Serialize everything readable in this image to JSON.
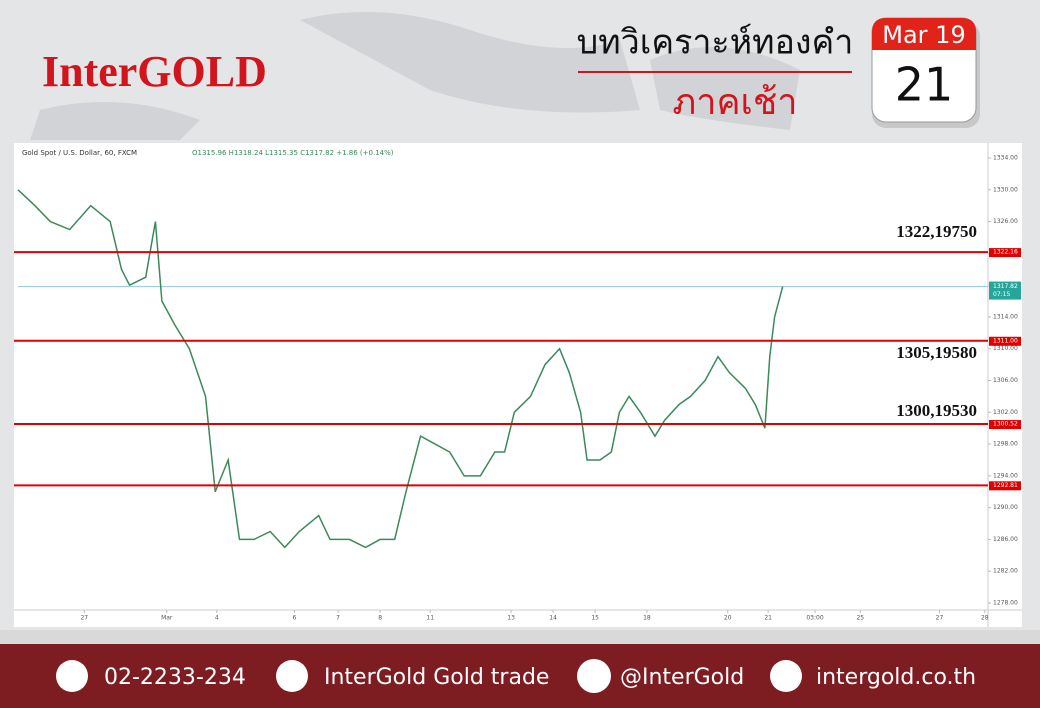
{
  "header": {
    "logo": "InterGOLD",
    "title": "บทวิเคราะห์ทองคำ",
    "subtitle": "ภาคเช้า",
    "month": "Mar 19",
    "day": "21"
  },
  "chart_data": {
    "type": "line",
    "title": "Gold Spot / U.S. Dollar, 60, FXCM",
    "ohlc": "O1315.96 H1318.24 L1315.35 C1317.82 +1.86 (+0.14%)",
    "series": [
      {
        "name": "Gold Spot",
        "color": "#3a8a5a",
        "x": [
          0,
          10.5,
          20,
          32,
          45,
          57,
          64,
          69,
          79,
          85,
          89,
          97,
          106,
          116,
          119,
          122,
          130,
          137,
          146,
          156,
          165,
          174,
          186,
          193,
          205,
          215,
          224,
          233,
          240,
          249,
          258,
          267,
          276,
          286,
          295,
          301,
          307,
          317,
          326,
          335,
          341,
          348,
          352,
          360,
          367,
          372,
          378,
          385,
          394,
          400,
          409,
          416,
          425,
          433,
          440,
          450,
          456,
          462,
          465,
          468,
          473
        ],
        "values": [
          1330,
          1328,
          1326,
          1325,
          1328,
          1326,
          1320,
          1318,
          1319,
          1326,
          1316,
          1313,
          1310,
          1304,
          1298,
          1292,
          1296,
          1286,
          1286,
          1287,
          1285,
          1287,
          1289,
          1286,
          1286,
          1285,
          1286,
          1286,
          1292,
          1299,
          1298,
          1297,
          1294,
          1294,
          1297,
          1297,
          1302,
          1304,
          1308,
          1310,
          1307,
          1302,
          1296,
          1296,
          1297,
          1302,
          1304,
          1302,
          1299,
          1301,
          1303,
          1304,
          1306,
          1309,
          1307,
          1305,
          1303,
          1300,
          1309,
          1314,
          1317.82
        ]
      }
    ],
    "levels": [
      {
        "value": 1322.16,
        "label": "1322.16"
      },
      {
        "value": 1311,
        "label": "1311.00"
      },
      {
        "value": 1300.52,
        "label": "1300.52"
      },
      {
        "value": 1292.81,
        "label": "1292.81"
      }
    ],
    "level_color": "#e00000",
    "annotations": [
      "1322,19750",
      "1305,19580",
      "1300,19530"
    ],
    "last_price": {
      "value": 1317.82,
      "countdown": "07:15",
      "color": "#8fc9d6",
      "tag_color": "#26a69a"
    },
    "xlim": [
      0,
      600
    ],
    "ylim": [
      1276,
      1336
    ],
    "yticks": [
      {
        "value": 1278,
        "label": "1278.00"
      },
      {
        "value": 1282,
        "label": "1282.00"
      },
      {
        "value": 1286,
        "label": "1286.00"
      },
      {
        "value": 1290,
        "label": "1290.00"
      },
      {
        "value": 1294,
        "label": "1294.00"
      },
      {
        "value": 1298,
        "label": "1298.00"
      },
      {
        "value": 1302,
        "label": "1302.00"
      },
      {
        "value": 1306,
        "label": "1306.00"
      },
      {
        "value": 1310,
        "label": "1310.00"
      },
      {
        "value": 1314,
        "label": "1314.00"
      },
      {
        "value": 1318,
        "label": "1318.00"
      },
      {
        "value": 1322,
        "label": "1322.00"
      },
      {
        "value": 1326,
        "label": "1326.00"
      },
      {
        "value": 1330,
        "label": "1330.00"
      },
      {
        "value": 1334,
        "label": "1334.00"
      }
    ],
    "xticks": [
      {
        "value": 41,
        "label": "27"
      },
      {
        "value": 92,
        "label": "Mar"
      },
      {
        "value": 123,
        "label": "4"
      },
      {
        "value": 171,
        "label": "6"
      },
      {
        "value": 198,
        "label": "7"
      },
      {
        "value": 224,
        "label": "8"
      },
      {
        "value": 255,
        "label": "11"
      },
      {
        "value": 305,
        "label": "13"
      },
      {
        "value": 331,
        "label": "14"
      },
      {
        "value": 357,
        "label": "15"
      },
      {
        "value": 389,
        "label": "18"
      },
      {
        "value": 439,
        "label": "20"
      },
      {
        "value": 464,
        "label": "21"
      },
      {
        "value": 493,
        "label": "03:00"
      },
      {
        "value": 521,
        "label": "25"
      },
      {
        "value": 570,
        "label": "27"
      },
      {
        "value": 598,
        "label": "28"
      }
    ]
  },
  "footer": {
    "phone": "02-2233-234",
    "facebook": "InterGold Gold trade",
    "line": "@InterGold",
    "web": "intergold.co.th"
  }
}
